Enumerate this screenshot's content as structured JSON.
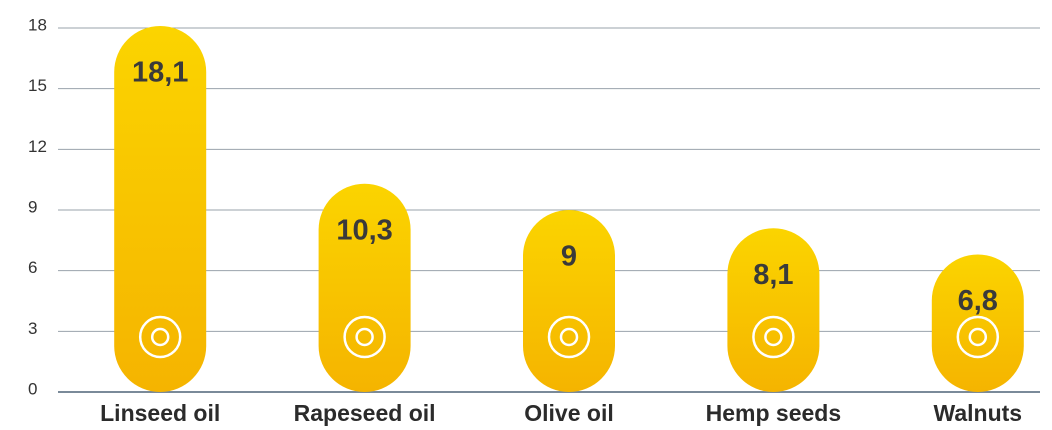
{
  "chart_data": {
    "type": "bar",
    "categories": [
      "Linseed oil",
      "Rapeseed oil",
      "Olive oil",
      "Hemp seeds",
      "Walnuts"
    ],
    "values": [
      18.1,
      10.3,
      9,
      8.1,
      6.8
    ],
    "value_labels": [
      "18,1",
      "10,3",
      "9",
      "8,1",
      "6,8"
    ],
    "color": "#fbd400",
    "ylim": [
      0,
      18
    ],
    "yticks": [
      0,
      3,
      6,
      9,
      12,
      15,
      18
    ],
    "grid": true
  }
}
